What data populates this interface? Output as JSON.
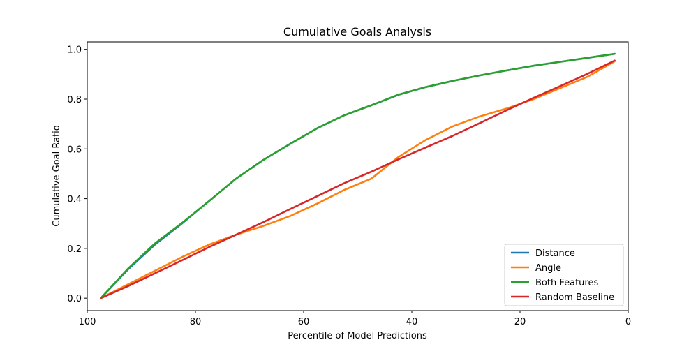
{
  "chart_data": {
    "type": "line",
    "title": "Cumulative Goals Analysis",
    "xlabel": "Percentile of Model Predictions",
    "ylabel": "Cumulative Goal Ratio",
    "xlim": [
      100,
      0
    ],
    "ylim": [
      -0.05,
      1.03
    ],
    "x_reversed": true,
    "xticks": [
      100,
      80,
      60,
      40,
      20,
      0
    ],
    "yticks": [
      0.0,
      0.2,
      0.4,
      0.6,
      0.8,
      1.0
    ],
    "xtick_labels": [
      "100",
      "80",
      "60",
      "40",
      "20",
      "0"
    ],
    "ytick_labels": [
      "0.0",
      "0.2",
      "0.4",
      "0.6",
      "0.8",
      "1.0"
    ],
    "grid": false,
    "legend_position": "lower-right",
    "x": [
      97.5,
      92.5,
      87.5,
      82.5,
      77.5,
      72.5,
      67.5,
      62.5,
      57.5,
      52.5,
      47.5,
      42.5,
      37.5,
      32.5,
      27.5,
      22.5,
      17.5,
      12.5,
      7.5,
      2.5
    ],
    "series": [
      {
        "name": "Distance",
        "color": "#1f77b4",
        "values": [
          0.0,
          0.115,
          0.215,
          0.3,
          0.39,
          0.48,
          0.555,
          0.62,
          0.683,
          0.735,
          0.775,
          0.817,
          0.848,
          0.873,
          0.895,
          0.915,
          0.934,
          0.95,
          0.966,
          0.982
        ]
      },
      {
        "name": "Angle",
        "color": "#ff7f0e",
        "values": [
          0.0,
          0.055,
          0.11,
          0.165,
          0.215,
          0.255,
          0.29,
          0.33,
          0.38,
          0.435,
          0.48,
          0.567,
          0.635,
          0.69,
          0.73,
          0.762,
          0.8,
          0.845,
          0.89,
          0.952
        ]
      },
      {
        "name": "Both Features",
        "color": "#2ca02c",
        "values": [
          0.0,
          0.118,
          0.22,
          0.302,
          0.39,
          0.48,
          0.555,
          0.62,
          0.683,
          0.735,
          0.775,
          0.818,
          0.848,
          0.873,
          0.895,
          0.915,
          0.934,
          0.95,
          0.966,
          0.982
        ]
      },
      {
        "name": "Random Baseline",
        "color": "#d62728",
        "values": [
          0.0,
          0.048,
          0.1,
          0.152,
          0.205,
          0.255,
          0.305,
          0.358,
          0.41,
          0.462,
          0.508,
          0.558,
          0.605,
          0.652,
          0.703,
          0.755,
          0.805,
          0.853,
          0.902,
          0.955
        ]
      }
    ]
  }
}
